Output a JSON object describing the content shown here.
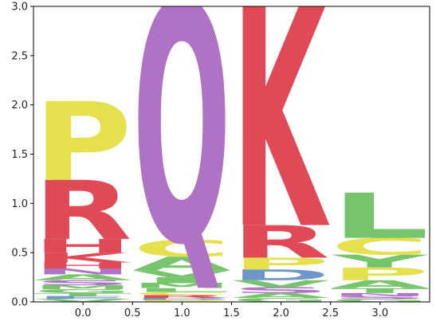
{
  "chart_data": {
    "type": "sequence-logo",
    "title": "",
    "xlabel": "",
    "ylabel": "",
    "xlim": [
      -0.5,
      3.5
    ],
    "ylim": [
      0,
      3.0
    ],
    "x_ticks": [
      0.0,
      0.5,
      1.0,
      1.5,
      2.0,
      2.5,
      3.0
    ],
    "x_tick_labels": [
      "0.0",
      "0.5",
      "1.0",
      "1.5",
      "2.0",
      "2.5",
      "3.0"
    ],
    "y_ticks": [
      0.0,
      0.5,
      1.0,
      1.5,
      2.0,
      2.5,
      3.0
    ],
    "y_tick_labels": [
      "0.0",
      "0.5",
      "1.0",
      "1.5",
      "2.0",
      "2.5",
      "3.0"
    ],
    "colors": {
      "P": "#e4e04e",
      "R": "#e04a57",
      "K": "#e04a57",
      "H": "#e04a57",
      "Q": "#b072c4",
      "N": "#b072c4",
      "S": "#b072c4",
      "C": "#e4e04e",
      "A": "#76c46c",
      "V": "#76c46c",
      "L": "#76c46c",
      "I": "#76c46c",
      "M": "#76c46c",
      "F": "#76c46c",
      "G": "#76c46c",
      "W": "#76c46c",
      "T": "#76c46c",
      "Y": "#76c46c",
      "D": "#6e96c8",
      "E": "#6e96c8"
    },
    "positions": [
      {
        "x": 0,
        "letters": [
          {
            "char": "V",
            "height": 0.03
          },
          {
            "char": "E",
            "height": 0.03
          },
          {
            "char": "T",
            "height": 0.03
          },
          {
            "char": "G",
            "height": 0.04
          },
          {
            "char": "M",
            "height": 0.04
          },
          {
            "char": "S",
            "height": 0.05
          },
          {
            "char": "A",
            "height": 0.06
          },
          {
            "char": "N",
            "height": 0.06
          },
          {
            "char": "H",
            "height": 0.06
          },
          {
            "char": "K",
            "height": 0.1
          },
          {
            "char": "H",
            "height": 0.14
          },
          {
            "char": "R",
            "height": 0.6
          },
          {
            "char": "P",
            "height": 0.8
          }
        ]
      },
      {
        "x": 1,
        "letters": [
          {
            "char": "P",
            "height": 0.02
          },
          {
            "char": "D",
            "height": 0.02
          },
          {
            "char": "R",
            "height": 0.03
          },
          {
            "char": "C",
            "height": 0.03
          },
          {
            "char": "L",
            "height": 0.04
          },
          {
            "char": "M",
            "height": 0.05
          },
          {
            "char": "I",
            "height": 0.06
          },
          {
            "char": "V",
            "height": 0.07
          },
          {
            "char": "A",
            "height": 0.14
          },
          {
            "char": "C",
            "height": 0.17
          },
          {
            "char": "Q",
            "height": 2.43
          }
        ]
      },
      {
        "x": 2,
        "letters": [
          {
            "char": "G",
            "height": 0.04
          },
          {
            "char": "A",
            "height": 0.05
          },
          {
            "char": "S",
            "height": 0.06
          },
          {
            "char": "V",
            "height": 0.07
          },
          {
            "char": "D",
            "height": 0.11
          },
          {
            "char": "P",
            "height": 0.12
          },
          {
            "char": "R",
            "height": 0.33
          },
          {
            "char": "K",
            "height": 2.22
          }
        ]
      },
      {
        "x": 3,
        "letters": [
          {
            "char": "G",
            "height": 0.03
          },
          {
            "char": "S",
            "height": 0.03
          },
          {
            "char": "N",
            "height": 0.03
          },
          {
            "char": "T",
            "height": 0.05
          },
          {
            "char": "A",
            "height": 0.08
          },
          {
            "char": "P",
            "height": 0.13
          },
          {
            "char": "Y",
            "height": 0.13
          },
          {
            "char": "C",
            "height": 0.17
          },
          {
            "char": "L",
            "height": 0.46
          }
        ]
      }
    ]
  }
}
